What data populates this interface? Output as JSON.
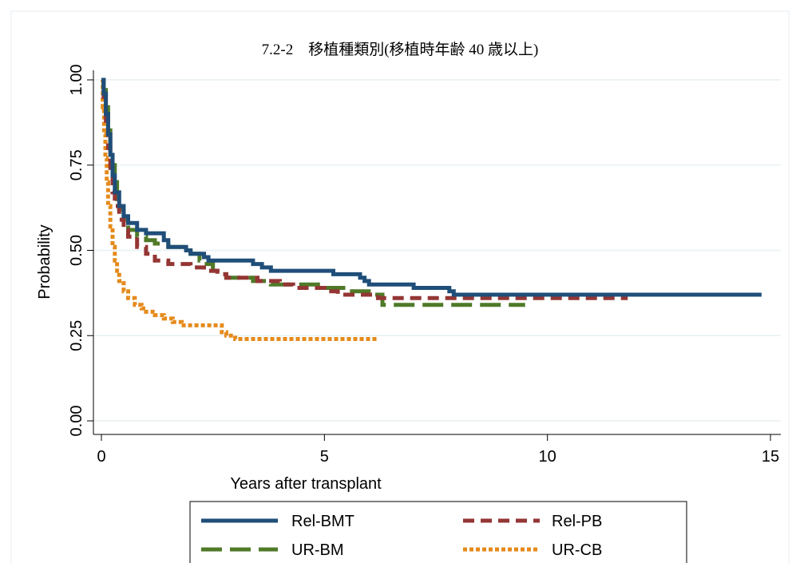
{
  "chart_data": {
    "type": "line",
    "subtype": "step",
    "title": "7.2-2　移植種類別(移植時年齢 40 歳以上)",
    "xlabel": "Years after transplant",
    "ylabel": "Probability",
    "xlim": [
      0,
      15
    ],
    "ylim": [
      0,
      1
    ],
    "xticks": [
      0,
      5,
      10,
      15
    ],
    "xtick_labels": [
      "0",
      "5",
      "10",
      "15"
    ],
    "yticks": [
      0,
      0.25,
      0.5,
      0.75,
      1
    ],
    "ytick_labels": [
      "0.00",
      "0.25",
      "0.50",
      "0.75",
      "1.00"
    ],
    "grid": "horizontal",
    "legend_position": "bottom",
    "series": [
      {
        "name": "Rel-BMT",
        "color": "#1f4e79",
        "dash": "solid",
        "points": [
          [
            0,
            1.0
          ],
          [
            0.05,
            0.96
          ],
          [
            0.1,
            0.9
          ],
          [
            0.15,
            0.84
          ],
          [
            0.2,
            0.78
          ],
          [
            0.25,
            0.72
          ],
          [
            0.3,
            0.67
          ],
          [
            0.4,
            0.63
          ],
          [
            0.5,
            0.6
          ],
          [
            0.6,
            0.58
          ],
          [
            0.8,
            0.56
          ],
          [
            1.0,
            0.55
          ],
          [
            1.4,
            0.53
          ],
          [
            1.5,
            0.51
          ],
          [
            1.9,
            0.5
          ],
          [
            2.0,
            0.49
          ],
          [
            2.3,
            0.48
          ],
          [
            2.4,
            0.47
          ],
          [
            3.2,
            0.47
          ],
          [
            3.4,
            0.46
          ],
          [
            3.6,
            0.45
          ],
          [
            3.8,
            0.44
          ],
          [
            5.1,
            0.44
          ],
          [
            5.2,
            0.43
          ],
          [
            5.8,
            0.42
          ],
          [
            5.9,
            0.41
          ],
          [
            6.0,
            0.4
          ],
          [
            6.5,
            0.4
          ],
          [
            7.0,
            0.39
          ],
          [
            7.8,
            0.38
          ],
          [
            7.9,
            0.37
          ],
          [
            14.8,
            0.37
          ]
        ]
      },
      {
        "name": "Rel-PB",
        "color": "#943634",
        "dash": "dash",
        "points": [
          [
            0,
            1.0
          ],
          [
            0.05,
            0.95
          ],
          [
            0.1,
            0.88
          ],
          [
            0.15,
            0.8
          ],
          [
            0.2,
            0.73
          ],
          [
            0.25,
            0.67
          ],
          [
            0.3,
            0.63
          ],
          [
            0.4,
            0.59
          ],
          [
            0.5,
            0.56
          ],
          [
            0.6,
            0.54
          ],
          [
            0.8,
            0.51
          ],
          [
            1.0,
            0.49
          ],
          [
            1.2,
            0.47
          ],
          [
            1.5,
            0.46
          ],
          [
            2.0,
            0.45
          ],
          [
            2.3,
            0.44
          ],
          [
            2.6,
            0.43
          ],
          [
            2.8,
            0.42
          ],
          [
            3.5,
            0.41
          ],
          [
            4.0,
            0.4
          ],
          [
            4.3,
            0.39
          ],
          [
            5.0,
            0.38
          ],
          [
            5.3,
            0.37
          ],
          [
            6.0,
            0.37
          ],
          [
            6.2,
            0.36
          ],
          [
            11.8,
            0.36
          ]
        ]
      },
      {
        "name": "UR-BM",
        "color": "#4f7a28",
        "dash": "longdash",
        "points": [
          [
            0,
            1.0
          ],
          [
            0.05,
            0.97
          ],
          [
            0.1,
            0.92
          ],
          [
            0.15,
            0.86
          ],
          [
            0.2,
            0.8
          ],
          [
            0.25,
            0.75
          ],
          [
            0.3,
            0.7
          ],
          [
            0.35,
            0.65
          ],
          [
            0.4,
            0.62
          ],
          [
            0.5,
            0.59
          ],
          [
            0.6,
            0.56
          ],
          [
            0.8,
            0.54
          ],
          [
            1.0,
            0.53
          ],
          [
            1.2,
            0.52
          ],
          [
            1.5,
            0.51
          ],
          [
            2.0,
            0.49
          ],
          [
            2.2,
            0.47
          ],
          [
            2.3,
            0.46
          ],
          [
            2.5,
            0.44
          ],
          [
            2.6,
            0.43
          ],
          [
            2.8,
            0.42
          ],
          [
            3.4,
            0.41
          ],
          [
            3.8,
            0.4
          ],
          [
            5.0,
            0.39
          ],
          [
            5.5,
            0.38
          ],
          [
            6.0,
            0.38
          ],
          [
            6.1,
            0.37
          ],
          [
            6.3,
            0.34
          ],
          [
            9.5,
            0.34
          ]
        ]
      },
      {
        "name": "UR-CB",
        "color": "#e58a1b",
        "dash": "dot",
        "points": [
          [
            0,
            1.0
          ],
          [
            0.03,
            0.92
          ],
          [
            0.06,
            0.84
          ],
          [
            0.09,
            0.77
          ],
          [
            0.12,
            0.7
          ],
          [
            0.15,
            0.63
          ],
          [
            0.2,
            0.57
          ],
          [
            0.25,
            0.51
          ],
          [
            0.3,
            0.47
          ],
          [
            0.35,
            0.44
          ],
          [
            0.4,
            0.41
          ],
          [
            0.5,
            0.38
          ],
          [
            0.6,
            0.36
          ],
          [
            0.75,
            0.34
          ],
          [
            0.9,
            0.33
          ],
          [
            1.0,
            0.32
          ],
          [
            1.2,
            0.31
          ],
          [
            1.4,
            0.3
          ],
          [
            1.6,
            0.29
          ],
          [
            1.8,
            0.28
          ],
          [
            2.6,
            0.28
          ],
          [
            2.7,
            0.26
          ],
          [
            2.8,
            0.25
          ],
          [
            3.0,
            0.24
          ],
          [
            6.2,
            0.24
          ]
        ]
      }
    ]
  }
}
